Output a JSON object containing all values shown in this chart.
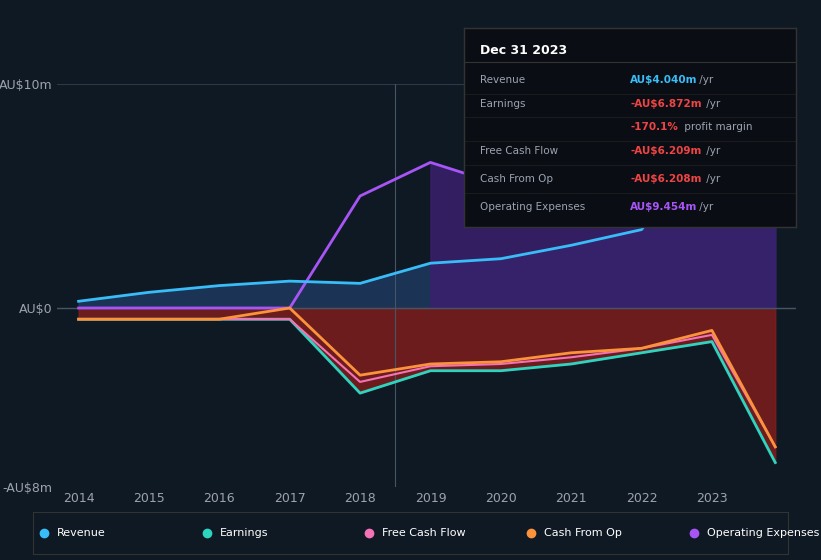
{
  "background_color": "#0f1923",
  "plot_bg_color": "#0f1923",
  "years": [
    2014,
    2015,
    2016,
    2017,
    2018,
    2019,
    2020,
    2021,
    2022,
    2023,
    2023.9
  ],
  "revenue": [
    0.3,
    0.7,
    1.0,
    1.2,
    1.1,
    2.0,
    2.2,
    2.8,
    3.5,
    7.5,
    4.0
  ],
  "earnings": [
    -0.5,
    -0.5,
    -0.5,
    -0.5,
    -3.8,
    -2.8,
    -2.8,
    -2.5,
    -2.0,
    -1.5,
    -6.9
  ],
  "free_cash_flow": [
    -0.5,
    -0.5,
    -0.5,
    -0.5,
    -3.3,
    -2.6,
    -2.5,
    -2.2,
    -1.8,
    -1.2,
    -6.2
  ],
  "cash_from_op": [
    -0.5,
    -0.5,
    -0.5,
    0.0,
    -3.0,
    -2.5,
    -2.4,
    -2.0,
    -1.8,
    -1.0,
    -6.2
  ],
  "operating_expenses": [
    0.0,
    0.0,
    0.0,
    0.0,
    5.0,
    6.5,
    5.5,
    5.5,
    6.5,
    8.5,
    9.5
  ],
  "revenue_color": "#38bdf8",
  "earnings_color": "#2dd4bf",
  "free_cash_flow_color": "#f472b6",
  "cash_from_op_color": "#fb923c",
  "operating_expenses_color": "#a855f7",
  "fill_positive_color": "#1e3a5f",
  "fill_negative_color": "#7f1d1d",
  "fill_opex_color": "#3b1f6e",
  "annotation_box_color": "#0a0e14",
  "annotation_border_color": "#333333",
  "grid_color": "#2a3a4a",
  "text_color": "#9ca3af",
  "highlight_start": 2018.5,
  "ylim": [
    -8,
    10
  ],
  "yticks": [
    -8,
    0,
    10
  ],
  "ytick_labels": [
    "-AU$8m",
    "AU$0",
    "AU$10m"
  ],
  "xticks": [
    2014,
    2015,
    2016,
    2017,
    2018,
    2019,
    2020,
    2021,
    2022,
    2023
  ],
  "legend_labels": [
    "Revenue",
    "Earnings",
    "Free Cash Flow",
    "Cash From Op",
    "Operating Expenses"
  ],
  "legend_colors": [
    "#38bdf8",
    "#2dd4bf",
    "#f472b6",
    "#fb923c",
    "#a855f7"
  ],
  "tooltip_title": "Dec 31 2023",
  "tooltip_rows": [
    {
      "label": "Revenue",
      "value": "AU$4.040m",
      "suffix": " /yr",
      "val_color": "#38bdf8",
      "suffix_color": "#9ca3af"
    },
    {
      "label": "Earnings",
      "value": "-AU$6.872m",
      "suffix": " /yr",
      "val_color": "#ef4444",
      "suffix_color": "#9ca3af"
    },
    {
      "label": "",
      "value": "-170.1%",
      "suffix": " profit margin",
      "val_color": "#ef4444",
      "suffix_color": "#9ca3af"
    },
    {
      "label": "Free Cash Flow",
      "value": "-AU$6.209m",
      "suffix": " /yr",
      "val_color": "#ef4444",
      "suffix_color": "#9ca3af"
    },
    {
      "label": "Cash From Op",
      "value": "-AU$6.208m",
      "suffix": " /yr",
      "val_color": "#ef4444",
      "suffix_color": "#9ca3af"
    },
    {
      "label": "Operating Expenses",
      "value": "AU$9.454m",
      "suffix": " /yr",
      "val_color": "#a855f7",
      "suffix_color": "#9ca3af"
    }
  ]
}
